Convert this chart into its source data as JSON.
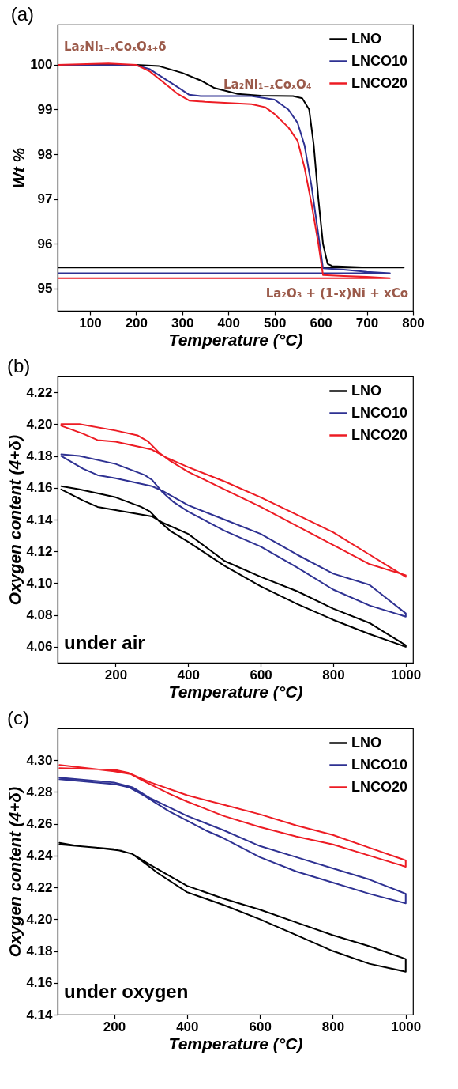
{
  "chart_data": [
    {
      "type": "line",
      "title": "(a)",
      "xlabel": "Temperature (°C)",
      "ylabel": "Wt %",
      "xlim": [
        30,
        800
      ],
      "ylim": [
        94.5,
        100.9
      ],
      "xticks": [
        100,
        200,
        300,
        400,
        500,
        600,
        700,
        800
      ],
      "yticks": [
        95,
        96,
        97,
        98,
        99,
        100
      ],
      "grid": false,
      "legend": "top right",
      "marker": "none",
      "line_style": "solid",
      "annotations": [
        "La₂Ni₁₋ₓCoₓO₄₊δ",
        "La₂Ni₁₋ₓCoₓO₄",
        "La₂O₃ + (1-x)Ni + xCo"
      ],
      "series": [
        {
          "name": "LNO",
          "color": "#000000",
          "x": [
            30,
            200,
            250,
            300,
            340,
            370,
            420,
            470,
            540,
            560,
            575,
            585,
            595,
            605,
            615,
            625,
            700,
            780,
            700,
            600,
            500,
            400,
            300,
            200,
            100,
            30
          ],
          "values": [
            100,
            100,
            99.97,
            99.82,
            99.65,
            99.48,
            99.35,
            99.31,
            99.3,
            99.25,
            99,
            98.2,
            97,
            96,
            95.55,
            95.5,
            95.47,
            95.47,
            95.47,
            95.47,
            95.47,
            95.47,
            95.47,
            95.47,
            95.47,
            95.47
          ]
        },
        {
          "name": "LNCO10",
          "color": "#2e3192",
          "x": [
            30,
            200,
            230,
            260,
            290,
            315,
            340,
            450,
            500,
            530,
            550,
            565,
            580,
            595,
            605,
            650,
            700,
            750,
            700,
            600,
            500,
            400,
            300,
            200,
            100,
            30
          ],
          "values": [
            100,
            99.99,
            99.9,
            99.7,
            99.5,
            99.33,
            99.3,
            99.3,
            99.22,
            99,
            98.7,
            98.2,
            97.3,
            96.2,
            95.45,
            95.42,
            95.37,
            95.34,
            95.34,
            95.34,
            95.34,
            95.34,
            95.34,
            95.34,
            95.34,
            95.34
          ]
        },
        {
          "name": "LNCO20",
          "color": "#ed1c24",
          "x": [
            30,
            140,
            200,
            230,
            260,
            290,
            315,
            350,
            450,
            480,
            500,
            530,
            550,
            565,
            580,
            595,
            605,
            650,
            700,
            750,
            700,
            600,
            500,
            400,
            300,
            200,
            100,
            30
          ],
          "values": [
            100,
            100.03,
            100,
            99.85,
            99.6,
            99.35,
            99.2,
            99.17,
            99.12,
            99.05,
            98.9,
            98.6,
            98.3,
            97.7,
            96.9,
            96,
            95.3,
            95.28,
            95.26,
            95.23,
            95.23,
            95.23,
            95.23,
            95.23,
            95.23,
            95.23,
            95.23,
            95.23
          ]
        }
      ]
    },
    {
      "type": "line",
      "title": "(b)",
      "xlabel": "Temperature (°C)",
      "ylabel": "Oxygen content (4+δ)",
      "xlim": [
        40,
        1020
      ],
      "ylim": [
        4.05,
        4.23
      ],
      "xticks": [
        200,
        400,
        600,
        800,
        1000
      ],
      "yticks": [
        4.06,
        4.08,
        {
          "value": 4.1,
          "label": "4.10"
        },
        4.12,
        4.14,
        4.16,
        4.18,
        {
          "value": 4.2,
          "label": "4.20"
        },
        4.22
      ],
      "grid": false,
      "legend": "top right",
      "marker": "none",
      "line_style": "solid",
      "annotations": [
        "under air"
      ],
      "series": [
        {
          "name": "LNO",
          "color": "#000000",
          "x": [
            50,
            100,
            200,
            270,
            295,
            320,
            350,
            400,
            500,
            600,
            700,
            800,
            900,
            1000,
            1000,
            950,
            900,
            800,
            700,
            600,
            500,
            400,
            330,
            300,
            250,
            200,
            150,
            110,
            50
          ],
          "values": [
            4.161,
            4.159,
            4.154,
            4.148,
            4.145,
            4.139,
            4.133,
            4.126,
            4.111,
            4.098,
            4.087,
            4.077,
            4.068,
            4.06,
            4.061,
            4.068,
            4.075,
            4.084,
            4.095,
            4.104,
            4.114,
            4.131,
            4.138,
            4.142,
            4.144,
            4.146,
            4.148,
            4.152,
            4.159
          ]
        },
        {
          "name": "LNCO10",
          "color": "#2e3192",
          "x": [
            50,
            100,
            200,
            280,
            300,
            330,
            360,
            400,
            500,
            600,
            700,
            800,
            900,
            1000,
            1000,
            900,
            800,
            700,
            600,
            500,
            400,
            330,
            300,
            200,
            150,
            110,
            50
          ],
          "values": [
            4.181,
            4.18,
            4.175,
            4.168,
            4.165,
            4.157,
            4.151,
            4.145,
            4.133,
            4.123,
            4.11,
            4.096,
            4.086,
            4.079,
            4.081,
            4.099,
            4.106,
            4.118,
            4.131,
            4.14,
            4.149,
            4.158,
            4.161,
            4.166,
            4.168,
            4.172,
            4.18
          ]
        },
        {
          "name": "LNCO20",
          "color": "#ed1c24",
          "x": [
            50,
            100,
            200,
            260,
            290,
            320,
            350,
            400,
            500,
            600,
            700,
            800,
            900,
            1000,
            1000,
            950,
            900,
            800,
            700,
            600,
            500,
            400,
            340,
            300,
            200,
            150,
            110,
            50
          ],
          "values": [
            4.2,
            4.2,
            4.196,
            4.193,
            4.189,
            4.182,
            4.177,
            4.17,
            4.159,
            4.148,
            4.136,
            4.124,
            4.112,
            4.105,
            4.104,
            4.111,
            4.118,
            4.132,
            4.143,
            4.154,
            4.164,
            4.173,
            4.179,
            4.184,
            4.189,
            4.19,
            4.194,
            4.199
          ]
        }
      ]
    },
    {
      "type": "line",
      "title": "(c)",
      "xlabel": "Temperature (°C)",
      "ylabel": "Oxygen content (4+δ)",
      "xlim": [
        45,
        1020
      ],
      "ylim": [
        4.14,
        4.32
      ],
      "xticks": [
        200,
        400,
        600,
        800,
        1000
      ],
      "yticks": [
        4.14,
        4.16,
        4.18,
        {
          "value": 4.2,
          "label": "4.20"
        },
        4.22,
        4.24,
        4.26,
        4.28,
        {
          "value": 4.3,
          "label": "4.30"
        }
      ],
      "grid": false,
      "legend": "top right",
      "marker": "none",
      "line_style": "solid",
      "annotations": [
        "under oxygen"
      ],
      "series": [
        {
          "name": "LNO",
          "color": "#000000",
          "x": [
            50,
            150,
            220,
            250,
            280,
            320,
            400,
            500,
            600,
            700,
            800,
            900,
            1000,
            1000,
            900,
            800,
            700,
            600,
            500,
            400,
            300,
            250,
            200,
            100,
            50
          ],
          "values": [
            4.247,
            4.245,
            4.243,
            4.241,
            4.236,
            4.229,
            4.217,
            4.209,
            4.2,
            4.19,
            4.18,
            4.172,
            4.167,
            4.175,
            4.183,
            4.19,
            4.198,
            4.206,
            4.213,
            4.221,
            4.234,
            4.241,
            4.244,
            4.246,
            4.248
          ]
        },
        {
          "name": "LNCO10",
          "color": "#2e3192",
          "x": [
            50,
            200,
            240,
            280,
            350,
            400,
            450,
            500,
            600,
            700,
            800,
            900,
            1000,
            1000,
            900,
            800,
            700,
            600,
            500,
            400,
            300,
            250,
            200,
            50
          ],
          "values": [
            4.288,
            4.285,
            4.283,
            4.278,
            4.268,
            4.262,
            4.256,
            4.251,
            4.239,
            4.23,
            4.223,
            4.216,
            4.21,
            4.216,
            4.225,
            4.232,
            4.239,
            4.246,
            4.256,
            4.265,
            4.276,
            4.283,
            4.286,
            4.289
          ]
        },
        {
          "name": "LNCO20",
          "color": "#ed1c24",
          "x": [
            50,
            200,
            240,
            280,
            350,
            400,
            500,
            600,
            700,
            800,
            900,
            1000,
            1000,
            900,
            800,
            700,
            600,
            500,
            400,
            300,
            250,
            200,
            50
          ],
          "values": [
            4.295,
            4.294,
            4.292,
            4.287,
            4.279,
            4.274,
            4.265,
            4.258,
            4.252,
            4.247,
            4.24,
            4.233,
            4.237,
            4.245,
            4.253,
            4.259,
            4.266,
            4.272,
            4.278,
            4.286,
            4.291,
            4.293,
            4.297
          ]
        }
      ]
    }
  ]
}
